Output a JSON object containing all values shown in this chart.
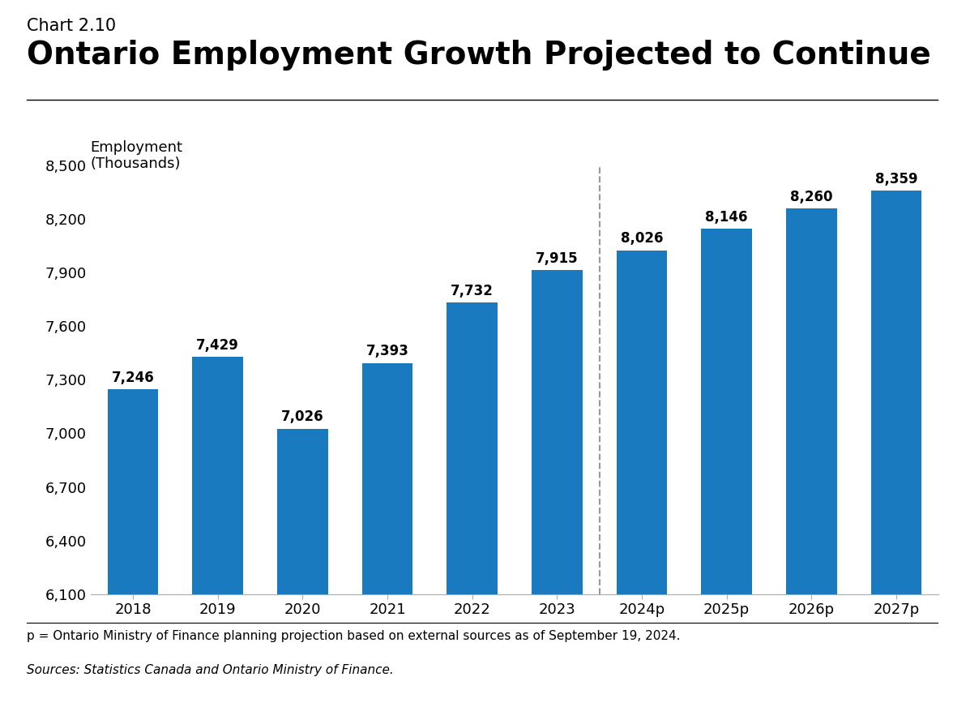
{
  "chart_label": "Chart 2.10",
  "title": "Ontario Employment Growth Projected to Continue",
  "ylabel_line1": "Employment",
  "ylabel_line2": "(Thousands)",
  "categories": [
    "2018",
    "2019",
    "2020",
    "2021",
    "2022",
    "2023",
    "2024p",
    "2025p",
    "2026p",
    "2027p"
  ],
  "values": [
    7246,
    7429,
    7026,
    7393,
    7732,
    7915,
    8026,
    8146,
    8260,
    8359
  ],
  "bar_color": "#1a7abf",
  "ylim_min": 6100,
  "ylim_max": 8500,
  "yticks": [
    6100,
    6400,
    6700,
    7000,
    7300,
    7600,
    7900,
    8200,
    8500
  ],
  "dashed_line_after_index": 5,
  "footnote1": "p = Ontario Ministry of Finance planning projection based on external sources as of September 19, 2024.",
  "footnote2": "Sources: Statistics Canada and Ontario Ministry of Finance.",
  "background_color": "#ffffff",
  "title_fontsize": 28,
  "chart_label_fontsize": 15,
  "ylabel_fontsize": 13,
  "tick_fontsize": 13,
  "bar_label_fontsize": 12,
  "footnote_fontsize": 11
}
